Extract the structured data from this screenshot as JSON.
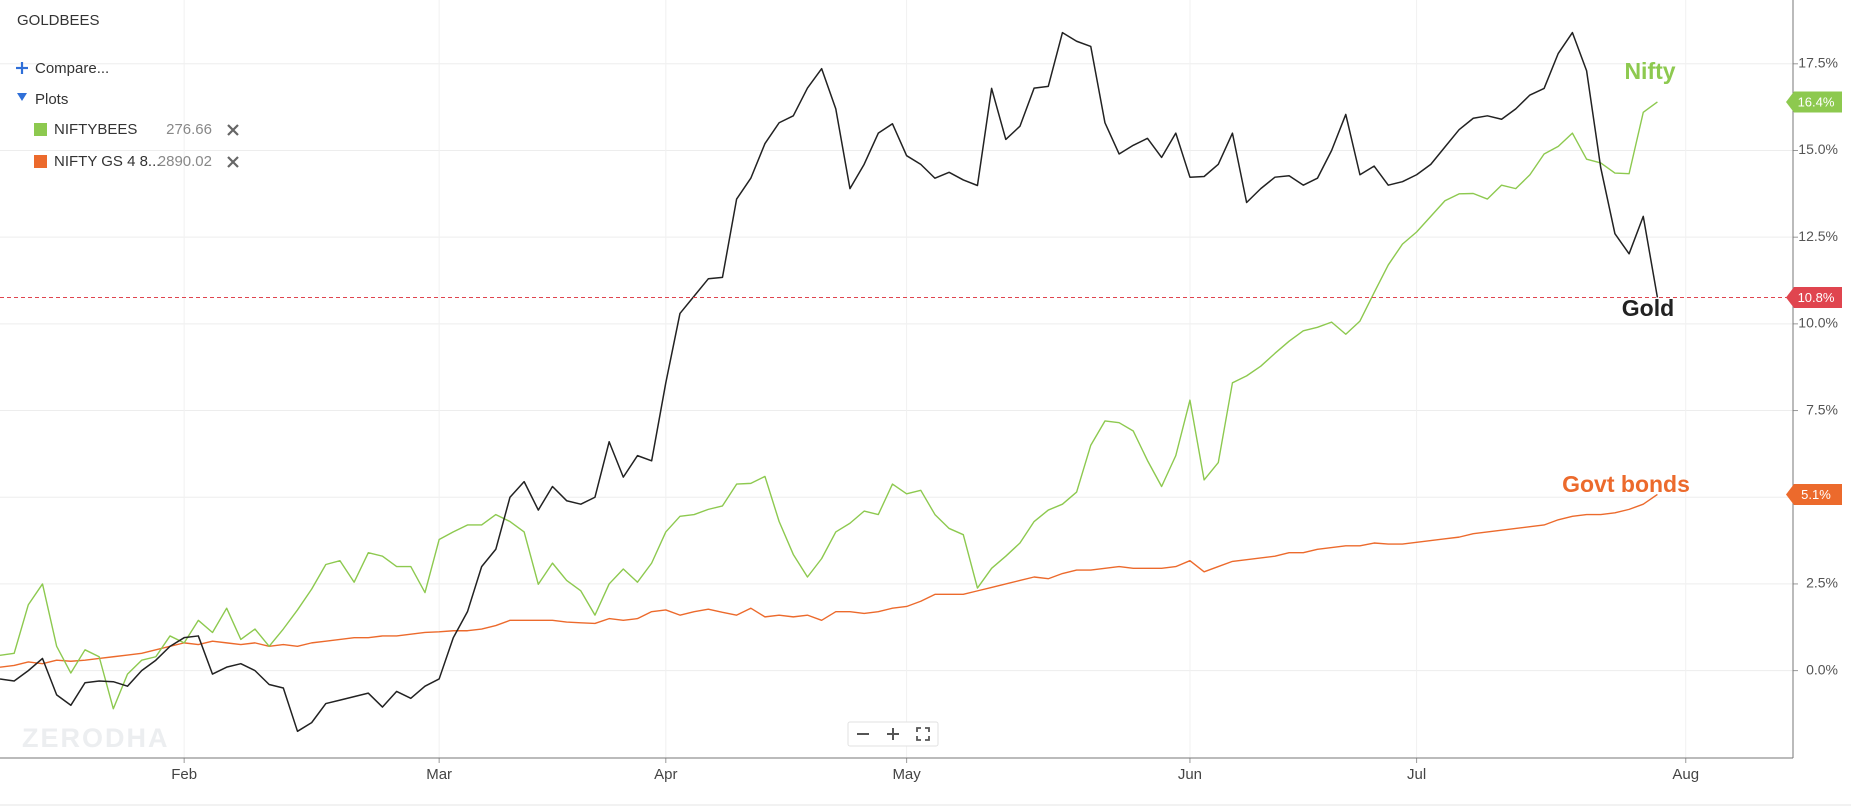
{
  "chart_data": {
    "type": "line",
    "categories": [
      null,
      null,
      null,
      null,
      null,
      null,
      null,
      null,
      null,
      null,
      null,
      null,
      null,
      "Feb",
      null,
      null,
      null,
      null,
      null,
      null,
      null,
      null,
      null,
      null,
      null,
      null,
      null,
      null,
      null,
      null,
      null,
      "Mar",
      null,
      null,
      null,
      null,
      null,
      null,
      null,
      null,
      null,
      null,
      null,
      null,
      null,
      null,
      null,
      "Apr",
      null,
      null,
      null,
      null,
      null,
      null,
      null,
      null,
      null,
      null,
      null,
      null,
      null,
      null,
      null,
      null,
      "May",
      null,
      null,
      null,
      null,
      null,
      null,
      null,
      null,
      null,
      null,
      null,
      null,
      null,
      null,
      null,
      null,
      null,
      null,
      null,
      "Jun",
      null,
      null,
      null,
      null,
      null,
      null,
      null,
      null,
      null,
      null,
      null,
      null,
      null,
      null,
      null,
      "Jul",
      null,
      null,
      null,
      null,
      null,
      null,
      null,
      null,
      null,
      null,
      null,
      null,
      null,
      null,
      null,
      null,
      null,
      null,
      "Aug"
    ],
    "ylim": [
      -2.52,
      19.34
    ],
    "yticks": [
      {
        "value": 0,
        "label": "0.0%"
      },
      {
        "value": 2.5,
        "label": "2.5%"
      },
      {
        "value": 5,
        "label": "5.0%"
      },
      {
        "value": 7.5,
        "label": "7.5%"
      },
      {
        "value": 10,
        "label": "10.0%"
      },
      {
        "value": 12.5,
        "label": "12.5%"
      },
      {
        "value": 15,
        "label": "15.0%"
      },
      {
        "value": 17.5,
        "label": "17.5%"
      }
    ],
    "grid": true,
    "watermark": "ZERODHA",
    "controls": {
      "compare": "Compare...",
      "plots": "Plots"
    },
    "series": [
      {
        "name": "GOLDBEES",
        "color": "#222222",
        "annotation": "Gold",
        "last_line": true,
        "badge_color": "#e0454f",
        "values": [
          -0.24,
          -0.3,
          0.0,
          0.35,
          -0.7,
          -1.0,
          -0.35,
          -0.3,
          -0.32,
          -0.45,
          0.0,
          0.3,
          0.7,
          0.95,
          1.0,
          -0.1,
          0.1,
          0.2,
          0.0,
          -0.4,
          -0.5,
          -1.75,
          -1.5,
          -0.95,
          -0.85,
          -0.75,
          -0.65,
          -1.05,
          -0.6,
          -0.8,
          -0.45,
          -0.24,
          0.95,
          1.7,
          3.0,
          3.5,
          5.0,
          5.45,
          4.63,
          5.31,
          4.9,
          4.8,
          5.0,
          6.6,
          5.58,
          6.2,
          6.05,
          8.3,
          10.3,
          10.8,
          11.3,
          11.34,
          13.6,
          14.2,
          15.2,
          15.8,
          16.0,
          16.8,
          17.36,
          16.2,
          13.9,
          14.6,
          15.5,
          15.77,
          14.85,
          14.6,
          14.2,
          14.37,
          14.15,
          13.99,
          16.79,
          15.32,
          15.7,
          16.8,
          16.85,
          18.4,
          18.15,
          18.0,
          15.8,
          14.9,
          15.15,
          15.35,
          14.8,
          15.5,
          14.23,
          14.25,
          14.6,
          15.5,
          13.5,
          13.9,
          14.23,
          14.27,
          14.0,
          14.2,
          15.0,
          16.04,
          14.3,
          14.55,
          14.0,
          14.1,
          14.3,
          14.6,
          15.1,
          15.6,
          15.93,
          16.0,
          15.9,
          16.2,
          16.6,
          16.79,
          17.8,
          18.4,
          17.3,
          14.5,
          12.6,
          12.02,
          13.1,
          10.76,
          null,
          null
        ],
        "value_labels": [
          null,
          null,
          null,
          null,
          null,
          null,
          null,
          null,
          null,
          null,
          null,
          null,
          null,
          null,
          null,
          null,
          null,
          null,
          null,
          null,
          null,
          null,
          null,
          null,
          null,
          null,
          null,
          null,
          null,
          null,
          null,
          null,
          null,
          null,
          null,
          null,
          null,
          null,
          null,
          null,
          null,
          null,
          null,
          null,
          null,
          null,
          null,
          null,
          null,
          null,
          null,
          null,
          null,
          null,
          null,
          null,
          null,
          null,
          null,
          null,
          null,
          null,
          null,
          null,
          null,
          null,
          null,
          null,
          null,
          null,
          null,
          null,
          null,
          null,
          null,
          null,
          null,
          null,
          null,
          null,
          null,
          null,
          null,
          null,
          null,
          null,
          null,
          null,
          null,
          null,
          null,
          null,
          null,
          null,
          null,
          null,
          null,
          null,
          null,
          null,
          null,
          null,
          null,
          null,
          null,
          null,
          null,
          null,
          null,
          null,
          null,
          null,
          null,
          null,
          null,
          null,
          null,
          "10.8%",
          null,
          null
        ]
      },
      {
        "name": "NIFTYBEES",
        "color": "#8dc94f",
        "annotation": "Nifty",
        "legend_value": 276.66,
        "badge_color": "#8dc94f",
        "values": [
          0.44,
          0.5,
          1.9,
          2.5,
          0.7,
          -0.07,
          0.6,
          0.4,
          -1.1,
          -0.1,
          0.3,
          0.4,
          1.0,
          0.8,
          1.45,
          1.1,
          1.8,
          0.9,
          1.2,
          0.7,
          1.2,
          1.75,
          2.35,
          3.06,
          3.17,
          2.55,
          3.4,
          3.3,
          3.0,
          3.0,
          2.25,
          3.78,
          4.0,
          4.2,
          4.2,
          4.5,
          4.3,
          4.0,
          2.49,
          3.1,
          2.6,
          2.3,
          1.6,
          2.5,
          2.93,
          2.55,
          3.1,
          4.0,
          4.45,
          4.5,
          4.65,
          4.75,
          5.38,
          5.4,
          5.6,
          4.3,
          3.35,
          2.7,
          3.23,
          4.0,
          4.25,
          4.6,
          4.5,
          5.38,
          5.1,
          5.2,
          4.5,
          4.1,
          3.92,
          2.38,
          2.95,
          3.3,
          3.68,
          4.3,
          4.63,
          4.8,
          5.15,
          6.5,
          7.2,
          7.15,
          6.91,
          6.06,
          5.31,
          6.2,
          7.8,
          5.5,
          6.0,
          8.3,
          8.5,
          8.78,
          9.15,
          9.5,
          9.8,
          9.9,
          10.05,
          9.7,
          10.08,
          10.9,
          11.7,
          12.3,
          12.65,
          13.1,
          13.55,
          13.75,
          13.76,
          13.6,
          14.0,
          13.9,
          14.3,
          14.9,
          15.12,
          15.5,
          14.75,
          14.64,
          14.35,
          14.33,
          16.1,
          16.4,
          null,
          null
        ],
        "value_labels": [
          null,
          null,
          null,
          null,
          null,
          null,
          null,
          null,
          null,
          null,
          null,
          null,
          null,
          null,
          null,
          null,
          null,
          null,
          null,
          null,
          null,
          null,
          null,
          null,
          null,
          null,
          null,
          null,
          null,
          null,
          null,
          null,
          null,
          null,
          null,
          null,
          null,
          null,
          null,
          null,
          null,
          null,
          null,
          null,
          null,
          null,
          null,
          null,
          null,
          null,
          null,
          null,
          null,
          null,
          null,
          null,
          null,
          null,
          null,
          null,
          null,
          null,
          null,
          null,
          null,
          null,
          null,
          null,
          null,
          null,
          null,
          null,
          null,
          null,
          null,
          null,
          null,
          null,
          null,
          null,
          null,
          null,
          null,
          null,
          null,
          null,
          null,
          null,
          null,
          null,
          null,
          null,
          null,
          null,
          null,
          null,
          null,
          null,
          null,
          null,
          null,
          null,
          null,
          null,
          null,
          null,
          null,
          null,
          null,
          null,
          null,
          null,
          null,
          null,
          null,
          null,
          null,
          "16.4%",
          null,
          null
        ]
      },
      {
        "name": "NIFTY GS 4 8...",
        "color": "#ec6a2c",
        "annotation": "Govt bonds",
        "legend_value": 2890.02,
        "badge_color": "#ec6a2c",
        "values": [
          0.1,
          0.15,
          0.25,
          0.2,
          0.3,
          0.27,
          0.3,
          0.35,
          0.4,
          0.45,
          0.5,
          0.6,
          0.7,
          0.8,
          0.75,
          0.85,
          0.8,
          0.75,
          0.8,
          0.7,
          0.75,
          0.7,
          0.8,
          0.85,
          0.9,
          0.95,
          0.95,
          1.0,
          1.0,
          1.05,
          1.1,
          1.12,
          1.15,
          1.15,
          1.2,
          1.3,
          1.45,
          1.45,
          1.45,
          1.45,
          1.4,
          1.38,
          1.36,
          1.5,
          1.45,
          1.5,
          1.7,
          1.75,
          1.6,
          1.7,
          1.77,
          1.68,
          1.6,
          1.8,
          1.55,
          1.6,
          1.55,
          1.6,
          1.45,
          1.7,
          1.7,
          1.65,
          1.7,
          1.8,
          1.85,
          2.0,
          2.2,
          2.2,
          2.2,
          2.3,
          2.4,
          2.5,
          2.6,
          2.7,
          2.65,
          2.8,
          2.9,
          2.9,
          2.95,
          3.0,
          2.95,
          2.95,
          2.95,
          3.0,
          3.17,
          2.85,
          3.0,
          3.15,
          3.2,
          3.25,
          3.3,
          3.4,
          3.4,
          3.5,
          3.55,
          3.6,
          3.6,
          3.68,
          3.65,
          3.65,
          3.7,
          3.75,
          3.8,
          3.85,
          3.95,
          4.0,
          4.05,
          4.1,
          4.15,
          4.2,
          4.35,
          4.45,
          4.5,
          4.5,
          4.55,
          4.65,
          4.8,
          5.08,
          null,
          null
        ],
        "value_labels": [
          null,
          null,
          null,
          null,
          null,
          null,
          null,
          null,
          null,
          null,
          null,
          null,
          null,
          null,
          null,
          null,
          null,
          null,
          null,
          null,
          null,
          null,
          null,
          null,
          null,
          null,
          null,
          null,
          null,
          null,
          null,
          null,
          null,
          null,
          null,
          null,
          null,
          null,
          null,
          null,
          null,
          null,
          null,
          null,
          null,
          null,
          null,
          null,
          null,
          null,
          null,
          null,
          null,
          null,
          null,
          null,
          null,
          null,
          null,
          null,
          null,
          null,
          null,
          null,
          null,
          null,
          null,
          null,
          null,
          null,
          null,
          null,
          null,
          null,
          null,
          null,
          null,
          null,
          null,
          null,
          null,
          null,
          null,
          null,
          null,
          null,
          null,
          null,
          null,
          null,
          null,
          null,
          null,
          null,
          null,
          null,
          null,
          null,
          null,
          null,
          null,
          null,
          null,
          null,
          null,
          null,
          null,
          null,
          null,
          null,
          null,
          null,
          null,
          null,
          null,
          null,
          null,
          "5.1%",
          null,
          null
        ]
      }
    ]
  }
}
